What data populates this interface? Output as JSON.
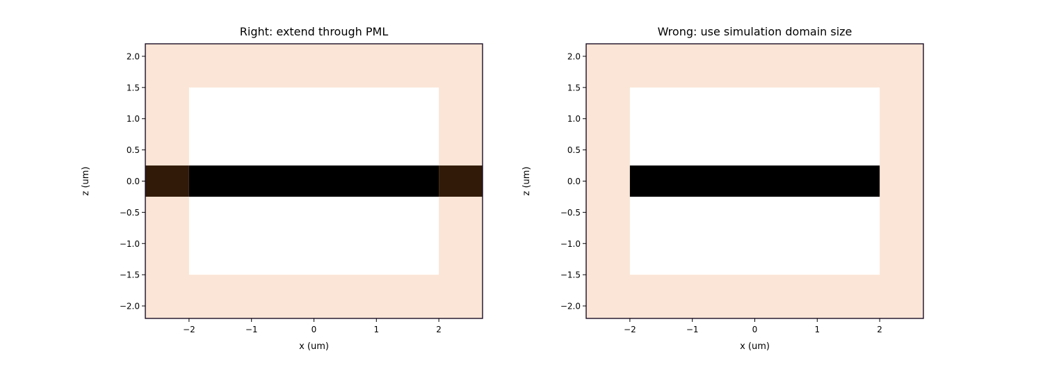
{
  "chart_data": [
    {
      "type": "heatmap",
      "title": "Right: extend through PML",
      "xlabel": "x (um)",
      "ylabel": "z (um)",
      "xlim": [
        -2.7,
        2.7
      ],
      "ylim": [
        -2.2,
        2.2
      ],
      "xticks": [
        -2,
        -1,
        0,
        1,
        2
      ],
      "xtick_labels": [
        "−2",
        "−1",
        "0",
        "1",
        "2"
      ],
      "yticks": [
        2.0,
        1.5,
        1.0,
        0.5,
        0.0,
        -0.5,
        -1.0,
        -1.5,
        -2.0
      ],
      "ytick_labels": [
        "2.0",
        "1.5",
        "1.0",
        "0.5",
        "0.0",
        "−0.5",
        "−1.0",
        "−1.5",
        "−2.0"
      ],
      "grid": false,
      "regions": [
        {
          "region": "pml",
          "x": [
            -2.7,
            2.7
          ],
          "z": [
            -2.2,
            2.2
          ],
          "color": "#fbe5d6"
        },
        {
          "region": "simulation-domain",
          "x": [
            -2.0,
            2.0
          ],
          "z": [
            -1.5,
            1.5
          ],
          "color": "#ffffff"
        },
        {
          "region": "waveguide",
          "x": [
            -2.0,
            2.0
          ],
          "z": [
            -0.25,
            0.25
          ],
          "color": "#000000"
        },
        {
          "region": "waveguide-in-pml",
          "x": [
            -2.7,
            -2.0
          ],
          "z": [
            -0.25,
            0.25
          ],
          "color": "#311a08"
        },
        {
          "region": "waveguide-in-pml",
          "x": [
            2.0,
            2.7
          ],
          "z": [
            -0.25,
            0.25
          ],
          "color": "#311a08"
        }
      ]
    },
    {
      "type": "heatmap",
      "title": "Wrong: use simulation domain size",
      "xlabel": "x (um)",
      "ylabel": "z (um)",
      "xlim": [
        -2.7,
        2.7
      ],
      "ylim": [
        -2.2,
        2.2
      ],
      "xticks": [
        -2,
        -1,
        0,
        1,
        2
      ],
      "xtick_labels": [
        "−2",
        "−1",
        "0",
        "1",
        "2"
      ],
      "yticks": [
        2.0,
        1.5,
        1.0,
        0.5,
        0.0,
        -0.5,
        -1.0,
        -1.5,
        -2.0
      ],
      "ytick_labels": [
        "2.0",
        "1.5",
        "1.0",
        "0.5",
        "0.0",
        "−0.5",
        "−1.0",
        "−1.5",
        "−2.0"
      ],
      "grid": false,
      "regions": [
        {
          "region": "pml",
          "x": [
            -2.7,
            2.7
          ],
          "z": [
            -2.2,
            2.2
          ],
          "color": "#fbe5d6"
        },
        {
          "region": "simulation-domain",
          "x": [
            -2.0,
            2.0
          ],
          "z": [
            -1.5,
            1.5
          ],
          "color": "#ffffff"
        },
        {
          "region": "waveguide",
          "x": [
            -2.0,
            2.0
          ],
          "z": [
            -0.25,
            0.25
          ],
          "color": "#000000"
        }
      ]
    }
  ]
}
